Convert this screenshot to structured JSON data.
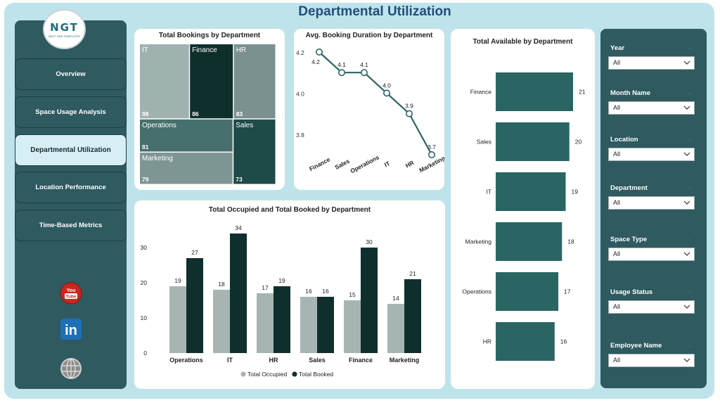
{
  "page": {
    "title": "Departmental Utilization"
  },
  "logo": {
    "text": "NGT",
    "subtext": "NEXT GEN TEMPLATES"
  },
  "nav": [
    {
      "label": "Overview",
      "active": false
    },
    {
      "label": "Space Usage Analysis",
      "active": false
    },
    {
      "label": "Departmental Utilization",
      "active": true
    },
    {
      "label": "Location Performance",
      "active": false
    },
    {
      "label": "Time-Based Metrics",
      "active": false
    }
  ],
  "social": {
    "youtube": "youtube-icon",
    "linkedin": "linkedin-icon",
    "web": "globe-icon",
    "youtube_text": "You Tube",
    "linkedin_text": "in"
  },
  "colors": {
    "dark": "#0f2f2d",
    "teal": "#2a6563",
    "gray": "#a6b5b3",
    "panel": "#2e5a60"
  },
  "filters": [
    {
      "label": "Year",
      "value": "All"
    },
    {
      "label": "Month Name",
      "value": "All"
    },
    {
      "label": "Location",
      "value": "All"
    },
    {
      "label": "Department",
      "value": "All"
    },
    {
      "label": "Space Type",
      "value": "All"
    },
    {
      "label": "Usage Status",
      "value": "All"
    },
    {
      "label": "Employee Name",
      "value": "All"
    }
  ],
  "chart_data": [
    {
      "type": "treemap",
      "title": "Total Bookings by Department",
      "categories": [
        "IT",
        "Finance",
        "HR",
        "Operations",
        "Sales",
        "Marketing"
      ],
      "values": [
        98,
        86,
        83,
        81,
        73,
        79
      ]
    },
    {
      "type": "line",
      "title": "Avg. Booking Duration by Department",
      "categories": [
        "Finance",
        "Sales",
        "Operations",
        "IT",
        "HR",
        "Marketing"
      ],
      "values": [
        4.2,
        4.1,
        4.1,
        4.0,
        3.9,
        3.7
      ],
      "y_ticks": [
        4.2,
        4.0,
        3.8
      ],
      "ylim": [
        3.7,
        4.2
      ]
    },
    {
      "type": "bar",
      "title": "Total Available by Department",
      "orientation": "horizontal",
      "categories": [
        "Finance",
        "Sales",
        "IT",
        "Marketing",
        "Operations",
        "HR"
      ],
      "values": [
        21,
        20,
        19,
        18,
        17,
        16
      ]
    },
    {
      "type": "bar",
      "title": "Total Occupied and Total Booked by Department",
      "categories": [
        "Operations",
        "IT",
        "HR",
        "Sales",
        "Finance",
        "Marketing"
      ],
      "series": [
        {
          "name": "Total Occupied",
          "values": [
            19,
            18,
            17,
            16,
            15,
            14
          ]
        },
        {
          "name": "Total Booked",
          "values": [
            27,
            34,
            19,
            16,
            30,
            21
          ]
        }
      ],
      "y_ticks": [
        0,
        10,
        20,
        30
      ],
      "ylim": [
        0,
        34
      ]
    }
  ]
}
